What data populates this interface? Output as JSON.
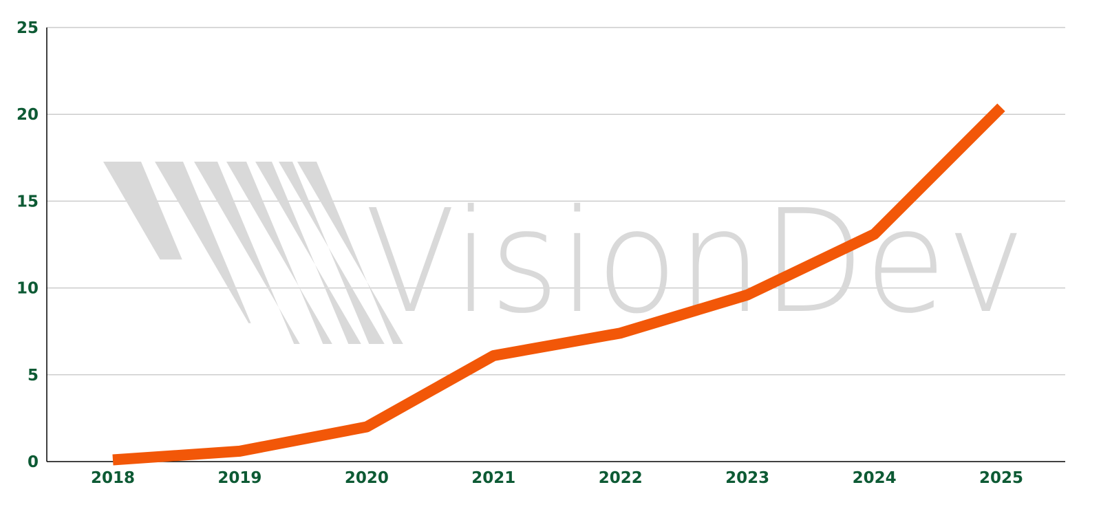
{
  "chart_data": {
    "type": "line",
    "title": "",
    "xlabel": "",
    "ylabel": "",
    "categories": [
      "2018",
      "2019",
      "2020",
      "2021",
      "2022",
      "2023",
      "2024",
      "2025"
    ],
    "series": [
      {
        "values": [
          0.1,
          0.6,
          2.0,
          6.1,
          7.4,
          9.6,
          13.1,
          20.4
        ],
        "color": "#f25708"
      }
    ],
    "ylim": [
      0,
      25
    ],
    "yticks": [
      0,
      5,
      10,
      15,
      20,
      25
    ],
    "grid": true,
    "legend": "none",
    "tick_label_color": "#0d5a34",
    "gridline_color": "#cccccc"
  },
  "watermark": {
    "text": "VisionDev",
    "color": "#d9d9d9"
  }
}
